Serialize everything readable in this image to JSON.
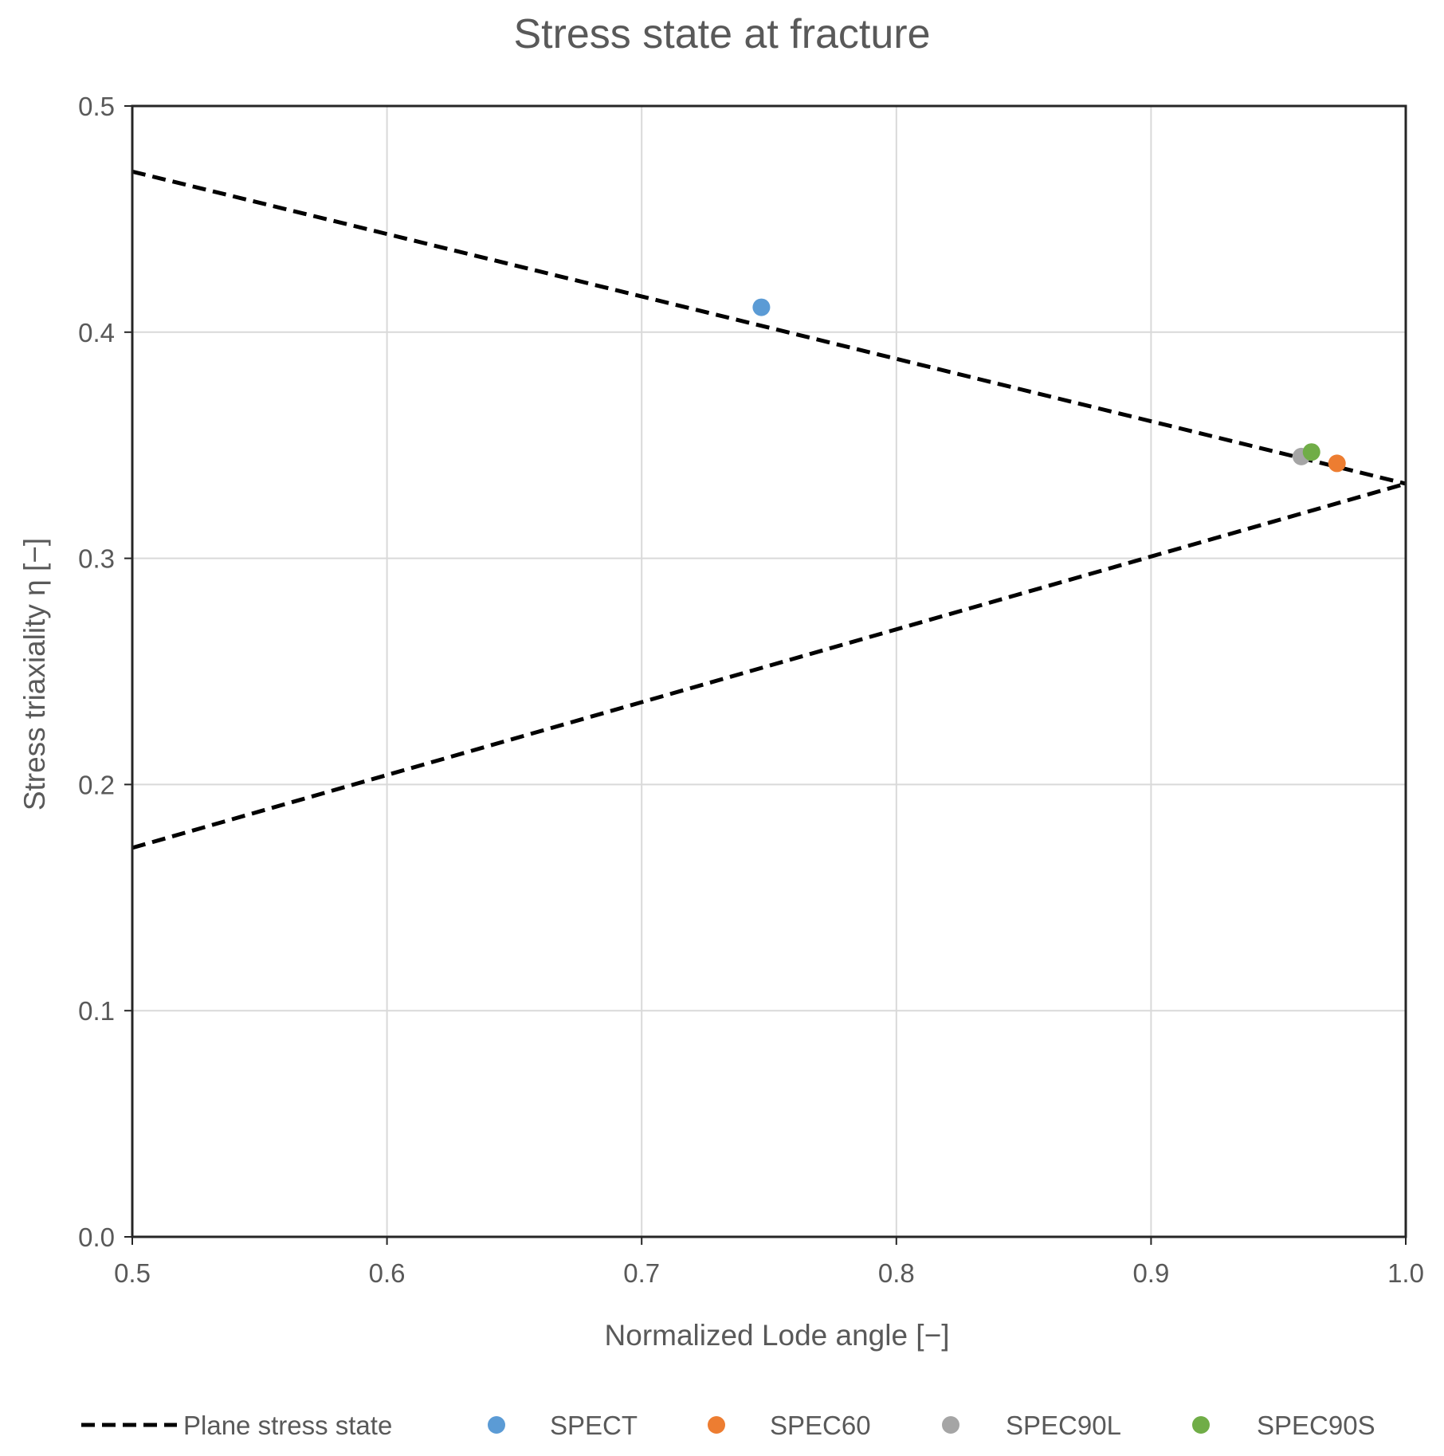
{
  "chart_data": {
    "type": "scatter",
    "title": "Stress state at fracture",
    "xlabel": "Normalized Lode angle  [−]",
    "ylabel": "Stress triaxiality η [−]",
    "xlim": [
      0.5,
      1.0
    ],
    "ylim": [
      0.0,
      0.5
    ],
    "xticks": [
      "0.5",
      "0.6",
      "0.7",
      "0.8",
      "0.9",
      "1.0"
    ],
    "yticks": [
      "0.0",
      "0.1",
      "0.2",
      "0.3",
      "0.4",
      "0.5"
    ],
    "grid": true,
    "legend_position": "bottom",
    "lines": [
      {
        "name": "Plane stress state",
        "style": "dashed",
        "color": "#000000",
        "segments": [
          {
            "x": [
              0.5,
              1.0
            ],
            "y": [
              0.471,
              0.333
            ]
          },
          {
            "x": [
              0.5,
              1.0
            ],
            "y": [
              0.172,
              0.333
            ]
          }
        ]
      }
    ],
    "series": [
      {
        "name": "SPECT",
        "color": "#5b9bd5",
        "x": [
          0.747
        ],
        "y": [
          0.411
        ]
      },
      {
        "name": "SPEC60",
        "color": "#ed7d31",
        "x": [
          0.973
        ],
        "y": [
          0.342
        ]
      },
      {
        "name": "SPEC90L",
        "color": "#a5a5a5",
        "x": [
          0.959
        ],
        "y": [
          0.345
        ]
      },
      {
        "name": "SPEC90S",
        "color": "#70ad47",
        "x": [
          0.963
        ],
        "y": [
          0.347
        ]
      }
    ]
  }
}
